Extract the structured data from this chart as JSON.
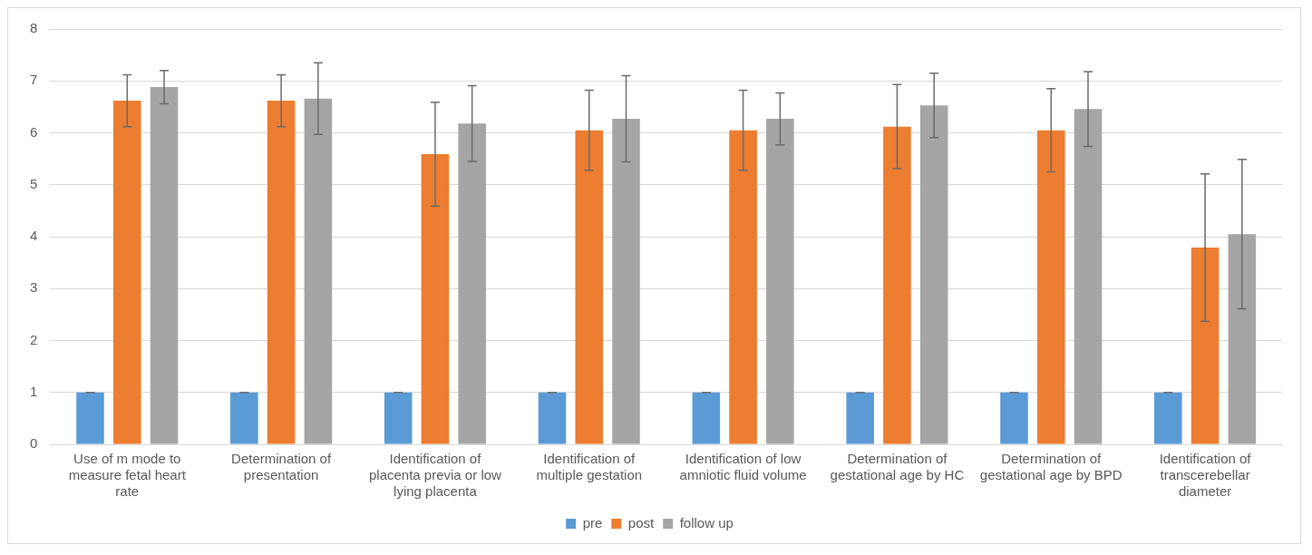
{
  "chart_data": {
    "type": "bar",
    "categories": [
      "Use of m mode to measure fetal heart rate",
      "Determination of presentation",
      "Identification of placenta previa or low lying placenta",
      "Identification of multiple gestation",
      "Identification of low amniotic fluid volume",
      "Determination of gestational age by HC",
      "Determination of gestational age by BPD",
      "Identification of transcerebellar diameter"
    ],
    "series": [
      {
        "name": "pre",
        "color": "#5b9bd5",
        "values": [
          1,
          1,
          1,
          1,
          1,
          1,
          1,
          1
        ],
        "errors": [
          0,
          0,
          0,
          0,
          0,
          0,
          0,
          0
        ]
      },
      {
        "name": "post",
        "color": "#ed7d31",
        "values": [
          6.62,
          6.62,
          5.59,
          6.05,
          6.05,
          6.12,
          6.05,
          3.79
        ],
        "errors": [
          0.5,
          0.5,
          1.0,
          0.77,
          0.77,
          0.81,
          0.8,
          1.42
        ]
      },
      {
        "name": "follow up",
        "color": "#a5a5a5",
        "values": [
          6.88,
          6.66,
          6.18,
          6.27,
          6.27,
          6.53,
          6.46,
          4.05
        ],
        "errors": [
          0.32,
          0.69,
          0.73,
          0.83,
          0.5,
          0.62,
          0.72,
          1.44
        ]
      }
    ],
    "ylim": [
      0,
      8
    ],
    "yticks": [
      0,
      1,
      2,
      3,
      4,
      5,
      6,
      7,
      8
    ],
    "grid": "y",
    "legend": "bottom"
  }
}
